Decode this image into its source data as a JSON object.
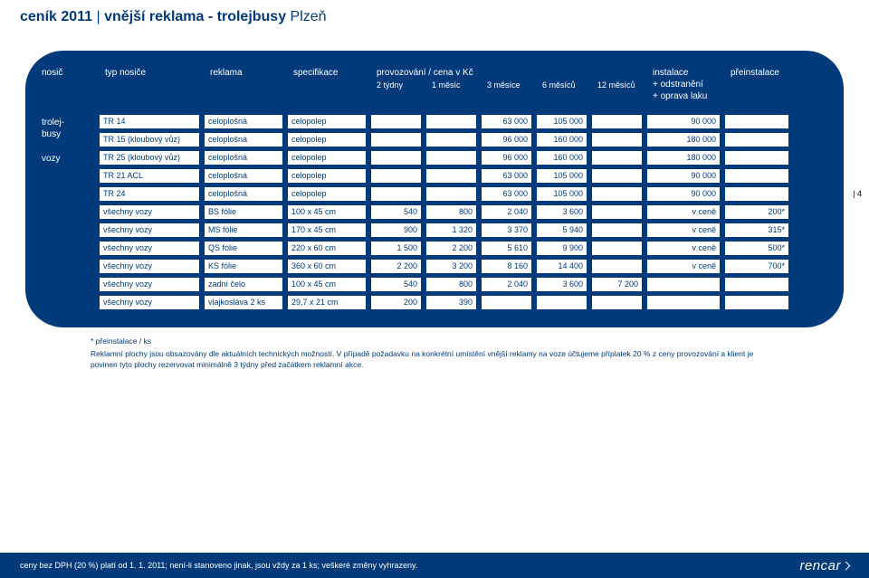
{
  "title": {
    "prefix": "ceník 2011",
    "sep": " | ",
    "main": "vnější reklama - trolejbusy",
    "suffix": " Plzeň"
  },
  "headers": {
    "nosic": "nosič",
    "typ": "typ nosiče",
    "reklama": "reklama",
    "spec": "specifikace",
    "provoz": "provozování / cena v Kč",
    "sub": [
      "2 týdny",
      "1 měsíc",
      "3 měsíce",
      "6 měsíců",
      "12 měsíců"
    ],
    "instal": "instalace\n+ odstranění\n+ oprava laku",
    "preinst": "přeinstalace"
  },
  "left": {
    "g1": "trolej-\nbusy",
    "g2": "vozy"
  },
  "rows": [
    {
      "c": [
        "TR 14",
        "celoplošná",
        "celopolep",
        "",
        "",
        "63 000",
        "105 000",
        "",
        "90 000",
        ""
      ]
    },
    {
      "c": [
        "TR 15 (kloubový vůz)",
        "celoplošná",
        "celopolep",
        "",
        "",
        "96 000",
        "160 000",
        "",
        "180 000",
        ""
      ]
    },
    {
      "c": [
        "TR 25 (kloubový vůz)",
        "celoplošná",
        "celopolep",
        "",
        "",
        "96 000",
        "160 000",
        "",
        "180 000",
        ""
      ]
    },
    {
      "c": [
        "TR 21 ACL",
        "celoplošná",
        "celopolep",
        "",
        "",
        "63 000",
        "105 000",
        "",
        "90 000",
        ""
      ]
    },
    {
      "c": [
        "TR 24",
        "celoplošná",
        "celopolep",
        "",
        "",
        "63 000",
        "105 000",
        "",
        "90 000",
        ""
      ]
    },
    {
      "c": [
        "všechny vozy",
        "BS fólie",
        "100 x 45 cm",
        "540",
        "800",
        "2 040",
        "3 600",
        "",
        "v ceně",
        "200*"
      ]
    },
    {
      "c": [
        "všechny vozy",
        "MS fólie",
        "170 x 45 cm",
        "900",
        "1 320",
        "3 370",
        "5 940",
        "",
        "v ceně",
        "315*"
      ]
    },
    {
      "c": [
        "všechny vozy",
        "QS fólie",
        "220 x 60 cm",
        "1 500",
        "2 200",
        "5 610",
        "9 900",
        "",
        "v ceně",
        "500*"
      ]
    },
    {
      "c": [
        "všechny vozy",
        "KS fólie",
        "360 x 60 cm",
        "2 200",
        "3 200",
        "8 160",
        "14 400",
        "",
        "v ceně",
        "700*"
      ]
    },
    {
      "c": [
        "všechny vozy",
        "zadní čelo",
        "100 x 45 cm",
        "540",
        "800",
        "2 040",
        "3 600",
        "7 200",
        "",
        ""
      ]
    },
    {
      "c": [
        "všechny vozy",
        "vlajkosláva 2 ks",
        "29,7 x 21 cm",
        "200",
        "390",
        "",
        "",
        "",
        "",
        ""
      ]
    }
  ],
  "page_num": "| 4",
  "foot": {
    "l1": "* přeinstalace / ks",
    "l2": "Reklamní plochy jsou obsazovány dle aktuálních technických možností. V případě požadavku na konkrétní umístění vnější reklamy na voze účtujeme příplatek 20 % z ceny provozování a klient je povinen tyto plochy rezervovat minimálně 3 týdny před začátkem reklamní akce."
  },
  "footer": {
    "text": "ceny bez DPH (20 %) platí od 1. 1. 2011; není-li stanoveno jinak, jsou vždy za 1 ks; veškeré změny vyhrazeny.",
    "logo": "rencar"
  },
  "colors": {
    "brand": "#003a7a",
    "bg": "#ffffff"
  }
}
